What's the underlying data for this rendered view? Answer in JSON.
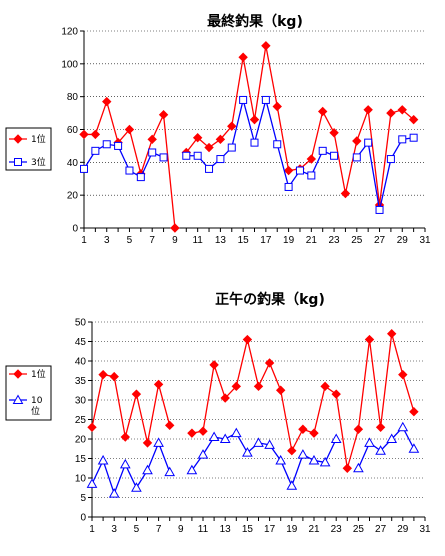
{
  "chart_data": [
    {
      "type": "line",
      "title": "最終釣果（kg)",
      "xlabel": "",
      "ylabel": "",
      "x": [
        1,
        2,
        3,
        4,
        5,
        6,
        7,
        8,
        9,
        10,
        11,
        12,
        13,
        14,
        15,
        16,
        17,
        18,
        19,
        20,
        21,
        22,
        23,
        24,
        25,
        26,
        27,
        28,
        29,
        30
      ],
      "xlim": [
        1,
        31
      ],
      "xticks": [
        1,
        3,
        5,
        7,
        9,
        11,
        13,
        15,
        17,
        19,
        21,
        23,
        25,
        27,
        29,
        31
      ],
      "ylim": [
        0,
        120
      ],
      "yticks": [
        0,
        20,
        40,
        60,
        80,
        100,
        120
      ],
      "grid": true,
      "legend": "left",
      "series": [
        {
          "name": "1位",
          "color": "#ff0000",
          "marker": "diamond-filled",
          "segments": [
            [
              [
                1,
                57
              ],
              [
                2,
                57
              ],
              [
                3,
                77
              ],
              [
                4,
                52
              ],
              [
                5,
                60
              ],
              [
                6,
                33
              ],
              [
                7,
                54
              ],
              [
                8,
                69
              ],
              [
                9,
                0
              ]
            ],
            [
              [
                10,
                46
              ],
              [
                11,
                55
              ],
              [
                12,
                49
              ],
              [
                13,
                54
              ],
              [
                14,
                62
              ],
              [
                15,
                104
              ],
              [
                16,
                66
              ],
              [
                17,
                111
              ],
              [
                18,
                74
              ],
              [
                19,
                35
              ],
              [
                20,
                36
              ],
              [
                21,
                42
              ],
              [
                22,
                71
              ],
              [
                23,
                58
              ],
              [
                24,
                21
              ],
              [
                25,
                53
              ],
              [
                26,
                72
              ],
              [
                27,
                14
              ],
              [
                28,
                70
              ],
              [
                29,
                72
              ],
              [
                30,
                66
              ]
            ]
          ]
        },
        {
          "name": "3位",
          "color": "#0000ff",
          "marker": "square-open",
          "segments": [
            [
              [
                1,
                36
              ],
              [
                2,
                47
              ],
              [
                3,
                51
              ],
              [
                4,
                50
              ],
              [
                5,
                35
              ],
              [
                6,
                31
              ],
              [
                7,
                46
              ],
              [
                8,
                43
              ]
            ],
            [
              [
                10,
                44
              ],
              [
                11,
                44
              ],
              [
                12,
                36
              ],
              [
                13,
                42
              ],
              [
                14,
                49
              ],
              [
                15,
                78
              ],
              [
                16,
                52
              ],
              [
                17,
                78
              ],
              [
                18,
                51
              ],
              [
                19,
                25
              ],
              [
                20,
                35
              ],
              [
                21,
                32
              ],
              [
                22,
                47
              ],
              [
                23,
                44
              ]
            ],
            [
              [
                25,
                43
              ],
              [
                26,
                52
              ],
              [
                27,
                11
              ],
              [
                28,
                42
              ],
              [
                29,
                54
              ],
              [
                30,
                55
              ]
            ]
          ]
        }
      ]
    },
    {
      "type": "line",
      "title": "正午の釣果（kg)",
      "xlabel": "",
      "ylabel": "",
      "x": [
        1,
        2,
        3,
        4,
        5,
        6,
        7,
        8,
        9,
        10,
        11,
        12,
        13,
        14,
        15,
        16,
        17,
        18,
        19,
        20,
        21,
        22,
        23,
        24,
        25,
        26,
        27,
        28,
        29,
        30
      ],
      "xlim": [
        1,
        31
      ],
      "xticks": [
        1,
        3,
        5,
        7,
        9,
        11,
        13,
        15,
        17,
        19,
        21,
        23,
        25,
        27,
        29,
        31
      ],
      "ylim": [
        0,
        50
      ],
      "yticks": [
        0,
        5,
        10,
        15,
        20,
        25,
        30,
        35,
        40,
        45,
        50
      ],
      "grid": true,
      "legend": "left",
      "series": [
        {
          "name": "1位",
          "color": "#ff0000",
          "marker": "diamond-filled",
          "segments": [
            [
              [
                1,
                23
              ],
              [
                2,
                36.5
              ],
              [
                3,
                36
              ],
              [
                4,
                20.5
              ],
              [
                5,
                31.5
              ],
              [
                6,
                19
              ],
              [
                7,
                34
              ],
              [
                8,
                23.5
              ]
            ],
            [
              [
                10,
                21.5
              ],
              [
                11,
                22
              ],
              [
                12,
                39
              ],
              [
                13,
                30.5
              ],
              [
                14,
                33.5
              ],
              [
                15,
                45.5
              ],
              [
                16,
                33.5
              ],
              [
                17,
                39.5
              ],
              [
                18,
                32.5
              ],
              [
                19,
                17
              ],
              [
                20,
                22.5
              ],
              [
                21,
                21.5
              ],
              [
                22,
                33.5
              ],
              [
                23,
                31.5
              ],
              [
                24,
                12.5
              ],
              [
                25,
                22.5
              ],
              [
                26,
                45.5
              ],
              [
                27,
                23
              ],
              [
                28,
                47
              ],
              [
                29,
                36.5
              ],
              [
                30,
                27
              ]
            ]
          ]
        },
        {
          "name": "10位",
          "color": "#0000ff",
          "marker": "triangle-open",
          "segments": [
            [
              [
                1,
                8.5
              ],
              [
                2,
                14.5
              ],
              [
                3,
                6
              ],
              [
                4,
                13.5
              ],
              [
                5,
                7.5
              ],
              [
                6,
                12
              ],
              [
                7,
                19
              ],
              [
                8,
                11.5
              ]
            ],
            [
              [
                10,
                12
              ],
              [
                11,
                16
              ],
              [
                12,
                20.5
              ],
              [
                13,
                20
              ],
              [
                14,
                21.5
              ],
              [
                15,
                16.5
              ],
              [
                16,
                19
              ],
              [
                17,
                18.5
              ],
              [
                18,
                14.5
              ],
              [
                19,
                8
              ],
              [
                20,
                16
              ],
              [
                21,
                14.5
              ],
              [
                22,
                14
              ],
              [
                23,
                20
              ]
            ],
            [
              [
                25,
                12.5
              ],
              [
                26,
                19
              ],
              [
                27,
                17
              ],
              [
                28,
                20
              ],
              [
                29,
                23
              ],
              [
                30,
                17.5
              ]
            ]
          ]
        }
      ]
    }
  ]
}
